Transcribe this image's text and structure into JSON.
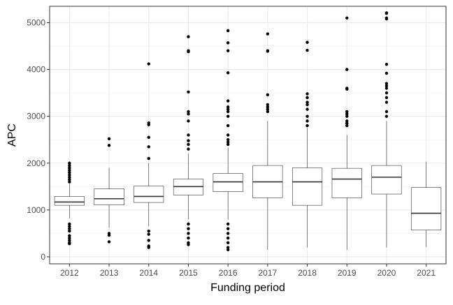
{
  "chart_data": {
    "type": "box",
    "xlabel": "Funding period",
    "ylabel": "APC",
    "ylim": [
      -150,
      5350
    ],
    "yticks": [
      0,
      1000,
      2000,
      3000,
      4000,
      5000
    ],
    "yticks_label": [
      "0",
      "1000",
      "2000",
      "3000",
      "4000",
      "5000"
    ],
    "grid": true,
    "legend": "none",
    "categories": [
      "2012",
      "2013",
      "2014",
      "2015",
      "2016",
      "2017",
      "2018",
      "2019",
      "2020",
      "2021"
    ],
    "boxes": [
      {
        "q1": 1100,
        "median": 1170,
        "q3": 1290,
        "whisker_low": 820,
        "whisker_high": 1560,
        "outliers": [
          2000,
          1950,
          1900,
          1850,
          1800,
          1750,
          1700,
          1650,
          1600,
          700,
          650,
          600,
          550,
          450,
          400,
          350,
          300,
          280
        ]
      },
      {
        "q1": 1110,
        "median": 1240,
        "q3": 1450,
        "whisker_low": 620,
        "whisker_high": 1900,
        "outliers": [
          2520,
          2380,
          500,
          460,
          320
        ]
      },
      {
        "q1": 1160,
        "median": 1290,
        "q3": 1510,
        "whisker_low": 650,
        "whisker_high": 2000,
        "outliers": [
          4120,
          2860,
          2820,
          2550,
          2350,
          2100,
          550,
          480,
          350,
          230,
          200
        ]
      },
      {
        "q1": 1320,
        "median": 1500,
        "q3": 1660,
        "whisker_low": 800,
        "whisker_high": 2200,
        "outliers": [
          4700,
          4400,
          4380,
          3520,
          3100,
          3050,
          2900,
          2600,
          2480,
          2400,
          2300,
          700,
          600,
          500,
          400,
          300,
          260
        ]
      },
      {
        "q1": 1390,
        "median": 1600,
        "q3": 1780,
        "whisker_low": 800,
        "whisker_high": 2330,
        "outliers": [
          4830,
          4570,
          4400,
          3930,
          3330,
          3200,
          3150,
          3100,
          3000,
          2800,
          2600,
          2500,
          2450,
          2400,
          700,
          600,
          500,
          400,
          300,
          200,
          150
        ]
      },
      {
        "q1": 1260,
        "median": 1600,
        "q3": 1950,
        "whisker_low": 150,
        "whisker_high": 2900,
        "outliers": [
          4760,
          4400,
          4390,
          3460,
          3250,
          3200,
          3150,
          3100
        ]
      },
      {
        "q1": 1100,
        "median": 1600,
        "q3": 1900,
        "whisker_low": 200,
        "whisker_high": 2750,
        "outliers": [
          4580,
          4410,
          3480,
          3400,
          3300,
          3250,
          3150,
          3000,
          2900,
          2800
        ]
      },
      {
        "q1": 1260,
        "median": 1660,
        "q3": 1890,
        "whisker_low": 150,
        "whisker_high": 2600,
        "outliers": [
          5100,
          4000,
          3600,
          3580,
          3100,
          3050,
          3000,
          2900,
          2850,
          2800
        ]
      },
      {
        "q1": 1340,
        "median": 1700,
        "q3": 1950,
        "whisker_low": 200,
        "whisker_high": 2900,
        "outliers": [
          5210,
          5200,
          5100,
          5080,
          4110,
          3920,
          3700,
          3650,
          3600,
          3500,
          3400,
          3300,
          3100,
          3000
        ]
      },
      {
        "q1": 570,
        "median": 930,
        "q3": 1480,
        "whisker_low": 210,
        "whisker_high": 2030,
        "outliers": []
      }
    ]
  }
}
